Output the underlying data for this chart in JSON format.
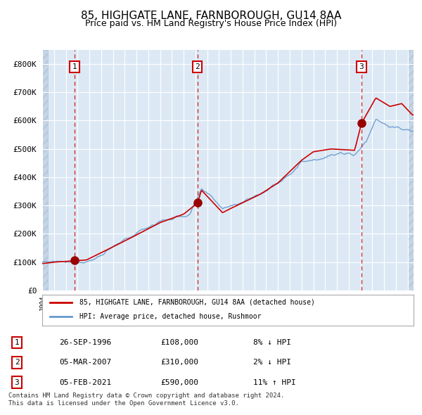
{
  "title1": "85, HIGHGATE LANE, FARNBOROUGH, GU14 8AA",
  "title2": "Price paid vs. HM Land Registry's House Price Index (HPI)",
  "sale_dates": [
    "1996-09-26",
    "2007-03-05",
    "2021-02-05"
  ],
  "sale_prices": [
    108000,
    310000,
    590000
  ],
  "sale_labels": [
    "1",
    "2",
    "3"
  ],
  "sale_info": [
    [
      "1",
      "26-SEP-1996",
      "£108,000",
      "8% ↓ HPI"
    ],
    [
      "2",
      "05-MAR-2007",
      "£310,000",
      "2% ↓ HPI"
    ],
    [
      "3",
      "05-FEB-2021",
      "£590,000",
      "11% ↑ HPI"
    ]
  ],
  "legend_line1": "85, HIGHGATE LANE, FARNBOROUGH, GU14 8AA (detached house)",
  "legend_line2": "HPI: Average price, detached house, Rushmoor",
  "footnote": "Contains HM Land Registry data © Crown copyright and database right 2024.\nThis data is licensed under the Open Government Licence v3.0.",
  "red_line_color": "#cc0000",
  "blue_line_color": "#6699cc",
  "background_color": "#dce9f5",
  "hatch_color": "#b0c4d8",
  "grid_color": "#ffffff",
  "vline_color_dashed": "#888888",
  "vline_color_sale": "#cc0000",
  "ylim": [
    0,
    850000
  ],
  "xlim_start": 1994.0,
  "xlim_end": 2025.5
}
